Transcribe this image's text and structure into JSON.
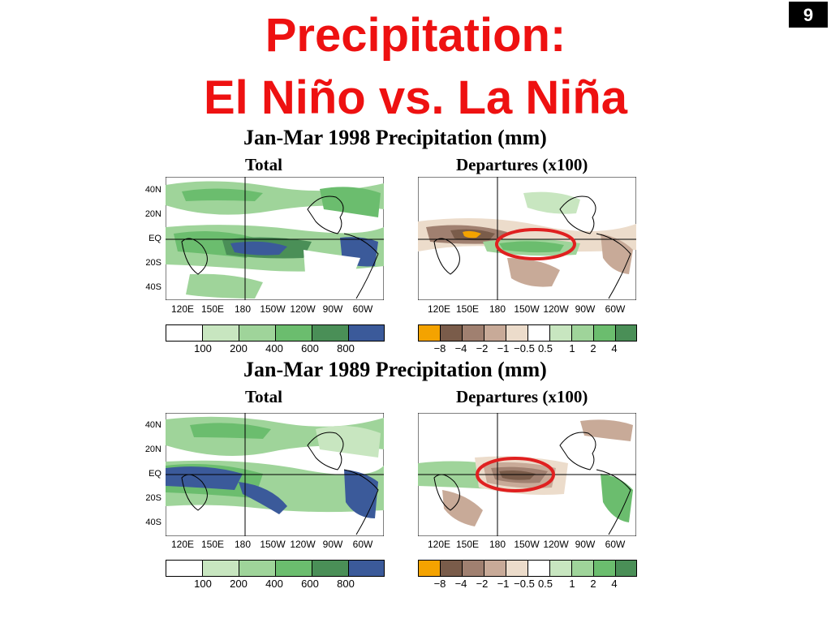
{
  "slide_number": "9",
  "title_line1": "Precipitation:",
  "title_line2": "El Niño vs. La Niña",
  "panels": [
    {
      "heading": "Jan-Mar 1998 Precipitation (mm)",
      "total_label": "Total",
      "departures_label": "Departures (x100)",
      "lat_labels": [
        "40N",
        "20N",
        "EQ",
        "20S",
        "40S"
      ],
      "lon_labels": [
        "120E",
        "150E",
        "180",
        "150W",
        "120W",
        "90W",
        "60W"
      ],
      "total_scale_ticks": [
        "100",
        "200",
        "400",
        "600",
        "800"
      ],
      "departure_scale_ticks": [
        "−8",
        "−4",
        "−2",
        "−1",
        "−0.5",
        "0.5",
        "1",
        "2",
        "4"
      ]
    },
    {
      "heading": "Jan-Mar 1989 Precipitation (mm)",
      "total_label": "Total",
      "departures_label": "Departures (x100)",
      "lat_labels": [
        "40N",
        "20N",
        "EQ",
        "20S",
        "40S"
      ],
      "lon_labels": [
        "120E",
        "150E",
        "180",
        "150W",
        "120W",
        "90W",
        "60W"
      ],
      "total_scale_ticks": [
        "100",
        "200",
        "400",
        "600",
        "800"
      ],
      "departure_scale_ticks": [
        "−8",
        "−4",
        "−2",
        "−1",
        "−0.5",
        "0.5",
        "1",
        "2",
        "4"
      ]
    }
  ],
  "colors": {
    "title": "#ee1111",
    "total_scale": [
      "#ffffff",
      "#c8e6c0",
      "#9fd49a",
      "#6bbd6e",
      "#4a8f57",
      "#3b5a9a"
    ],
    "departure_scale": [
      "#f4a300",
      "#7a5c4a",
      "#a08070",
      "#c8aa98",
      "#ecdccb",
      "#ffffff",
      "#c8e6c0",
      "#9fd49a",
      "#6bbd6e",
      "#4a8f57"
    ],
    "highlight_ellipse": "#e02020"
  }
}
